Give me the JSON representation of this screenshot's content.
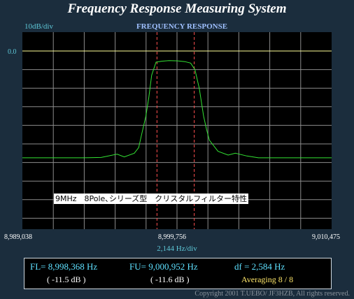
{
  "header": {
    "title": "Frequency Response Measuring System",
    "scale": "10dB/div",
    "panel_title": "FREQUENCY RESPONSE",
    "ref_level": "0.0"
  },
  "caption": "9MHz　8Pole､シリーズ型　クリスタルフィルター特性",
  "axis": {
    "x_ticks": [
      "8,989,038",
      "8,999,756",
      "9,010,475"
    ],
    "x_scale": "2,144  Hz/div"
  },
  "results": {
    "fl": "FL= 8,998,368  Hz",
    "fl_db": "( -11.5 dB )",
    "fu": "FU= 9,000,952  Hz",
    "fu_db": "( -11.6 dB )",
    "df": "df = 2,584  Hz",
    "averaging": "Averaging   8 / 8"
  },
  "copyright": "Copyright 2001 T.UEBO/ JF3HZB, All rights reserved.",
  "colors": {
    "trace": "#33e233",
    "marker": "#ff5050",
    "reference": "#ffff99",
    "grid": "#8c8c8c"
  },
  "chart_data": {
    "type": "line",
    "title": "FREQUENCY RESPONSE",
    "xlabel": "2,144  Hz/div",
    "ylabel": "10dB/div",
    "xlim": [
      8989038,
      9010475
    ],
    "ylim": [
      -100,
      0
    ],
    "grid": true,
    "x": [
      8989038,
      8991200,
      8993200,
      8994500,
      8995000,
      8995600,
      8996100,
      8996800,
      8997100,
      8997300,
      8997600,
      8997800,
      8998000,
      8998300,
      8998700,
      8999200,
      8999800,
      9000300,
      9000700,
      9001000,
      9001300,
      9001600,
      9001800,
      9002000,
      9002600,
      9003300,
      9003800,
      9004600,
      9005400,
      9010475
    ],
    "y": [
      -57.5,
      -57.5,
      -57.5,
      -57.3,
      -56.5,
      -55.5,
      -57,
      -55,
      -52,
      -45,
      -35,
      -25,
      -13,
      -6,
      -5.5,
      -5.2,
      -5.3,
      -5.7,
      -6.5,
      -10,
      -20,
      -35,
      -42,
      -48,
      -54,
      -56,
      -55,
      -56.5,
      -57.5,
      -57.5
    ],
    "markers": [
      {
        "label": "FL",
        "x": 8998368
      },
      {
        "label": "FU",
        "x": 9000952
      }
    ],
    "reference_line": 0
  }
}
